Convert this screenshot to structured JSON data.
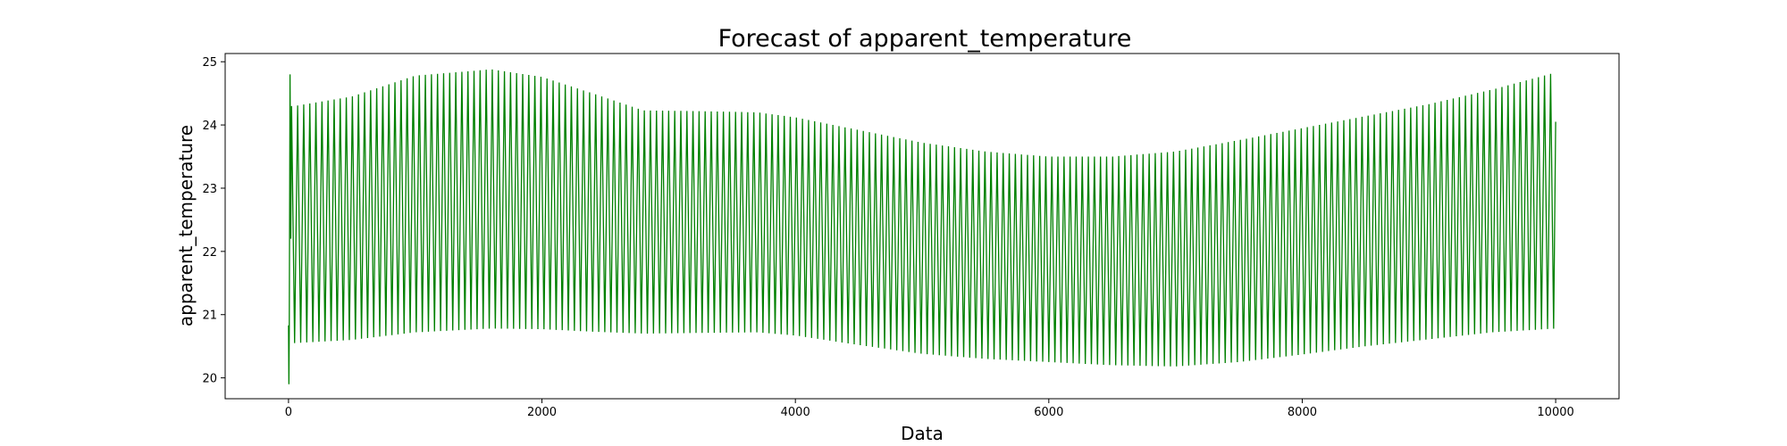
{
  "chart_data": {
    "type": "line",
    "title": "Forecast of apparent_temperature",
    "xlabel": "Data",
    "ylabel": "apparent_temperature",
    "xlim": [
      -500,
      10500
    ],
    "ylim": [
      19.67,
      25.13
    ],
    "x_ticks": [
      0,
      2000,
      4000,
      6000,
      8000,
      10000
    ],
    "x_tick_labels": [
      "0",
      "2000",
      "4000",
      "6000",
      "8000",
      "10000"
    ],
    "y_ticks": [
      20,
      21,
      22,
      23,
      24,
      25
    ],
    "y_tick_labels": [
      "20",
      "21",
      "22",
      "23",
      "24",
      "25"
    ],
    "grid": false,
    "legend": "none",
    "series": [
      {
        "color": "#008000",
        "period": 48,
        "x_start": 0,
        "x_end": 10000,
        "initial_points": [
          {
            "x": 0,
            "y": 20.83
          },
          {
            "x": 3,
            "y": 19.9
          },
          {
            "x": 6,
            "y": 20.8
          },
          {
            "x": 12,
            "y": 24.8
          },
          {
            "x": 18,
            "y": 22.2
          },
          {
            "x": 24,
            "y": 24.3
          },
          {
            "x": 48,
            "y": 20.55
          }
        ],
        "upper_envelope": [
          {
            "x": 48,
            "y": 24.3
          },
          {
            "x": 500,
            "y": 24.45
          },
          {
            "x": 1000,
            "y": 24.78
          },
          {
            "x": 1600,
            "y": 24.88
          },
          {
            "x": 2000,
            "y": 24.76
          },
          {
            "x": 2400,
            "y": 24.5
          },
          {
            "x": 2800,
            "y": 24.23
          },
          {
            "x": 3200,
            "y": 24.22
          },
          {
            "x": 3700,
            "y": 24.2
          },
          {
            "x": 4000,
            "y": 24.12
          },
          {
            "x": 4500,
            "y": 23.92
          },
          {
            "x": 5000,
            "y": 23.72
          },
          {
            "x": 5500,
            "y": 23.58
          },
          {
            "x": 6000,
            "y": 23.5
          },
          {
            "x": 6500,
            "y": 23.5
          },
          {
            "x": 7000,
            "y": 23.58
          },
          {
            "x": 7500,
            "y": 23.76
          },
          {
            "x": 8000,
            "y": 23.95
          },
          {
            "x": 8500,
            "y": 24.14
          },
          {
            "x": 9000,
            "y": 24.33
          },
          {
            "x": 9500,
            "y": 24.56
          },
          {
            "x": 10000,
            "y": 24.83
          }
        ],
        "lower_envelope": [
          {
            "x": 48,
            "y": 20.55
          },
          {
            "x": 500,
            "y": 20.6
          },
          {
            "x": 1000,
            "y": 20.72
          },
          {
            "x": 1600,
            "y": 20.78
          },
          {
            "x": 2000,
            "y": 20.77
          },
          {
            "x": 2400,
            "y": 20.73
          },
          {
            "x": 2800,
            "y": 20.7
          },
          {
            "x": 3200,
            "y": 20.71
          },
          {
            "x": 3700,
            "y": 20.72
          },
          {
            "x": 4000,
            "y": 20.67
          },
          {
            "x": 4500,
            "y": 20.52
          },
          {
            "x": 5000,
            "y": 20.38
          },
          {
            "x": 5500,
            "y": 20.3
          },
          {
            "x": 6000,
            "y": 20.25
          },
          {
            "x": 6500,
            "y": 20.2
          },
          {
            "x": 7000,
            "y": 20.18
          },
          {
            "x": 7500,
            "y": 20.25
          },
          {
            "x": 8000,
            "y": 20.37
          },
          {
            "x": 8500,
            "y": 20.5
          },
          {
            "x": 9000,
            "y": 20.61
          },
          {
            "x": 9500,
            "y": 20.72
          },
          {
            "x": 10000,
            "y": 20.78
          }
        ],
        "final_value": 24.05
      }
    ]
  }
}
